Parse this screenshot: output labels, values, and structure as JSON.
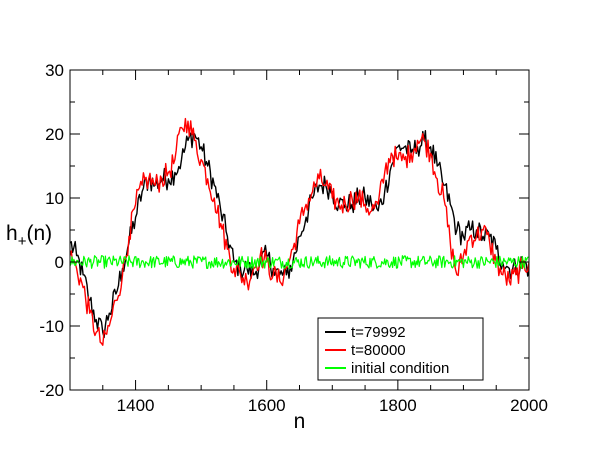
{
  "chart_data": {
    "type": "line",
    "xlabel": "n",
    "ylabel_main": "h",
    "ylabel_sub": "+",
    "ylabel_tail": "(n)",
    "xlim": [
      1300,
      2000
    ],
    "ylim": [
      -20,
      30
    ],
    "x_ticks": [
      1400,
      1600,
      1800,
      2000
    ],
    "x_tick_labels": [
      "1400",
      "1600",
      "1800",
      "2000"
    ],
    "y_ticks": [
      -20,
      -10,
      0,
      10,
      20,
      30
    ],
    "y_tick_labels": [
      "-20",
      "-10",
      "0",
      "10",
      "20",
      "30"
    ],
    "grid": false,
    "legend_position": "bottom-right",
    "series": [
      {
        "name": "t=79992",
        "color": "#000000",
        "x": [
          1300,
          1310,
          1320,
          1330,
          1340,
          1350,
          1360,
          1370,
          1380,
          1390,
          1400,
          1410,
          1420,
          1430,
          1440,
          1450,
          1460,
          1470,
          1480,
          1490,
          1500,
          1510,
          1520,
          1530,
          1540,
          1550,
          1560,
          1570,
          1580,
          1590,
          1600,
          1610,
          1620,
          1630,
          1640,
          1650,
          1660,
          1670,
          1680,
          1690,
          1700,
          1710,
          1720,
          1730,
          1740,
          1750,
          1760,
          1770,
          1780,
          1790,
          1800,
          1810,
          1820,
          1830,
          1840,
          1850,
          1860,
          1870,
          1880,
          1890,
          1900,
          1910,
          1920,
          1930,
          1940,
          1950,
          1960,
          1970,
          1980,
          1990,
          2000
        ],
        "y": [
          3,
          1,
          -2,
          -6,
          -9,
          -11,
          -8,
          -5,
          -1,
          3,
          7,
          11,
          13,
          12,
          13,
          13,
          14,
          16,
          19,
          20,
          18,
          15,
          12,
          8,
          4,
          0,
          -1,
          -1,
          -2,
          0,
          1,
          -1,
          -2,
          -2,
          0,
          4,
          7,
          10,
          12,
          12,
          11,
          9,
          9,
          9,
          10,
          10,
          9,
          8,
          11,
          15,
          18,
          18,
          17,
          18,
          19,
          18,
          15,
          12,
          9,
          5,
          4,
          5,
          5,
          4,
          4,
          2,
          0,
          -1,
          -1,
          0,
          -1
        ]
      },
      {
        "name": "t=80000",
        "color": "#ff0000",
        "x": [
          1300,
          1310,
          1320,
          1330,
          1340,
          1350,
          1360,
          1370,
          1380,
          1390,
          1400,
          1410,
          1420,
          1430,
          1440,
          1450,
          1460,
          1470,
          1480,
          1490,
          1500,
          1510,
          1520,
          1530,
          1540,
          1550,
          1560,
          1570,
          1580,
          1590,
          1600,
          1610,
          1620,
          1630,
          1640,
          1650,
          1660,
          1670,
          1680,
          1690,
          1700,
          1710,
          1720,
          1730,
          1740,
          1750,
          1760,
          1770,
          1780,
          1790,
          1800,
          1810,
          1820,
          1830,
          1840,
          1850,
          1860,
          1870,
          1880,
          1890,
          1900,
          1910,
          1920,
          1930,
          1940,
          1950,
          1960,
          1970,
          1980,
          1990,
          2000
        ],
        "y": [
          1,
          -1,
          -4,
          -8,
          -11,
          -13,
          -10,
          -6,
          -2,
          4,
          9,
          12,
          13,
          12,
          13,
          14,
          16,
          21,
          22,
          19,
          16,
          13,
          10,
          6,
          2,
          -1,
          -2,
          -3,
          -1,
          1,
          0,
          -2,
          -3,
          -1,
          2,
          6,
          9,
          11,
          13,
          12,
          10,
          9,
          9,
          10,
          10,
          9,
          8,
          9,
          14,
          17,
          16,
          16,
          17,
          19,
          19,
          17,
          13,
          10,
          3,
          -2,
          1,
          4,
          4,
          5,
          3,
          0,
          -2,
          -3,
          -2,
          -1,
          0
        ]
      },
      {
        "name": "initial condition",
        "color": "#00ff00",
        "x": [
          1300,
          2000
        ],
        "y": [
          0,
          0
        ],
        "noise_amplitude": 1
      }
    ]
  }
}
